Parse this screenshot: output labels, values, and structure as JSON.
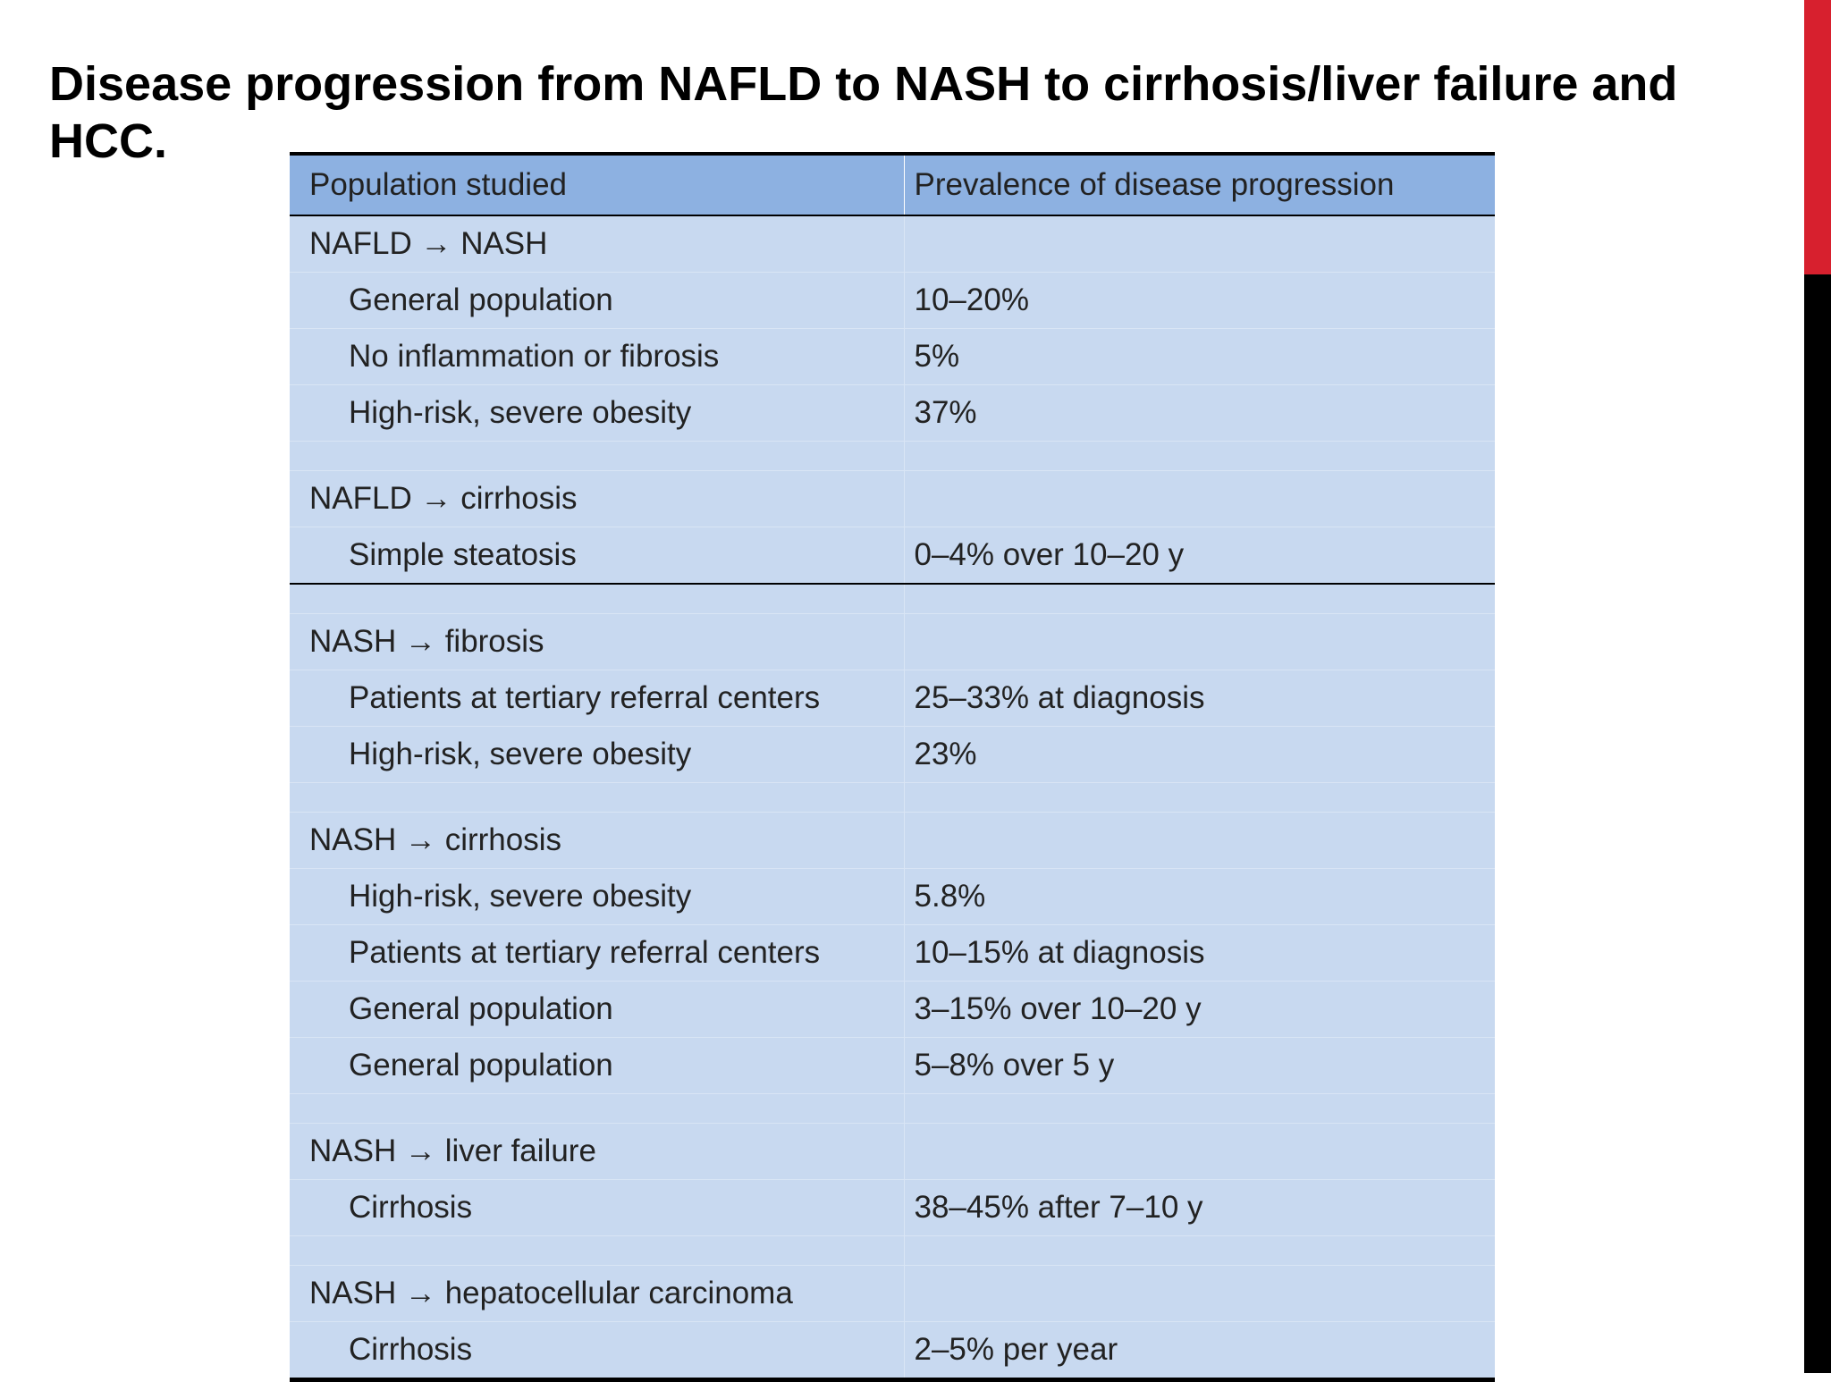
{
  "slide": {
    "title": "Disease progression from NAFLD to NASH to cirrhosis/liver failure and HCC.",
    "colors": {
      "accent_red": "#d7202e",
      "accent_black": "#000000",
      "header_fill": "#8db1e1",
      "body_fill": "#c8d9f0"
    }
  },
  "table": {
    "headers": [
      "Population studied",
      "Prevalence of disease progression"
    ],
    "groups": [
      {
        "label": "NAFLD → NASH",
        "rows": [
          {
            "population": "General population",
            "prevalence": "10–20%"
          },
          {
            "population": "No inflammation or fibrosis",
            "prevalence": "5%"
          },
          {
            "population": "High-risk, severe obesity",
            "prevalence": "37%"
          }
        ]
      },
      {
        "label": "NAFLD → cirrhosis",
        "rows": [
          {
            "population": "Simple steatosis",
            "prevalence": "0–4% over 10–20 y"
          }
        ]
      },
      {
        "label": "NASH → fibrosis",
        "rows": [
          {
            "population": "Patients at tertiary referral centers",
            "prevalence": "25–33% at diagnosis"
          },
          {
            "population": "High-risk, severe obesity",
            "prevalence": "23%"
          }
        ]
      },
      {
        "label": "NASH → cirrhosis",
        "rows": [
          {
            "population": "High-risk, severe obesity",
            "prevalence": "5.8%"
          },
          {
            "population": "Patients at tertiary referral centers",
            "prevalence": "10–15% at diagnosis"
          },
          {
            "population": "General population",
            "prevalence": "3–15% over 10–20 y"
          },
          {
            "population": "General population",
            "prevalence": "5–8% over 5 y"
          }
        ]
      },
      {
        "label": "NASH → liver failure",
        "rows": [
          {
            "population": "Cirrhosis",
            "prevalence": "38–45% after 7–10 y"
          }
        ]
      },
      {
        "label": "NASH → hepatocellular carcinoma",
        "rows": [
          {
            "population": "Cirrhosis",
            "prevalence": "2–5% per year"
          }
        ]
      }
    ]
  }
}
